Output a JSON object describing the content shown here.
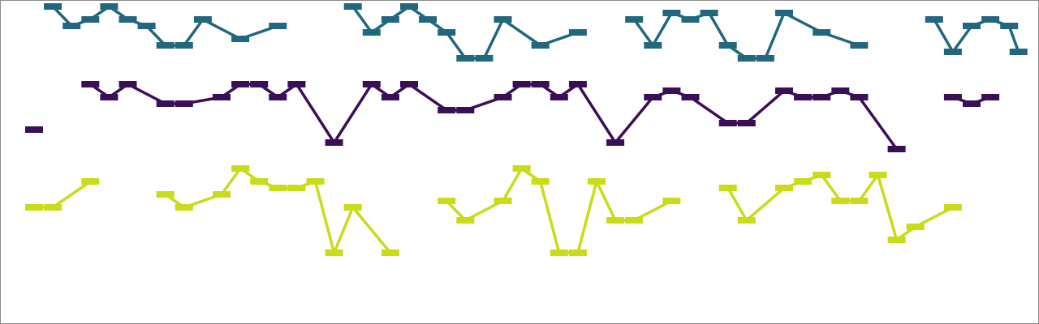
{
  "chart_data": {
    "type": "line",
    "title": "",
    "xlabel": "",
    "ylabel": "",
    "xlim": [
      1,
      53
    ],
    "ylim": [
      0,
      46
    ],
    "grid": false,
    "legend": "none",
    "colors": {
      "teal": "#21677e",
      "purple": "#3a0f57",
      "yellow": "#c9dc17"
    },
    "marker": "dash",
    "series": [
      {
        "color": "teal",
        "points": [
          [
            2,
            45
          ],
          [
            3,
            42
          ],
          [
            4,
            43
          ],
          [
            5,
            45
          ],
          [
            6,
            43
          ],
          [
            7,
            42
          ],
          [
            8,
            39
          ],
          [
            9,
            39
          ],
          [
            10,
            43
          ],
          [
            12,
            40
          ],
          [
            14,
            42
          ],
          [
            18,
            45
          ],
          [
            19,
            41
          ],
          [
            20,
            43
          ],
          [
            21,
            45
          ],
          [
            22,
            43
          ],
          [
            23,
            41
          ],
          [
            24,
            37
          ],
          [
            25,
            37
          ],
          [
            26,
            43
          ],
          [
            28,
            39
          ],
          [
            30,
            41
          ],
          [
            33,
            43
          ],
          [
            34,
            39
          ],
          [
            35,
            44
          ],
          [
            36,
            43
          ],
          [
            37,
            44
          ],
          [
            38,
            39
          ],
          [
            39,
            37
          ],
          [
            40,
            37
          ],
          [
            41,
            44
          ],
          [
            43,
            41
          ],
          [
            45,
            39
          ],
          [
            49,
            43
          ],
          [
            50,
            38
          ],
          [
            51,
            42
          ],
          [
            52,
            43
          ],
          [
            53,
            42
          ],
          [
            53.5,
            38
          ]
        ]
      },
      {
        "color": "purple",
        "points": [
          [
            4,
            33
          ],
          [
            5,
            31
          ],
          [
            6,
            33
          ],
          [
            8,
            30
          ],
          [
            9,
            30
          ],
          [
            11,
            31
          ],
          [
            12,
            33
          ],
          [
            13,
            33
          ],
          [
            14,
            31
          ],
          [
            15,
            33
          ],
          [
            17,
            24
          ],
          [
            19,
            33
          ],
          [
            20,
            31
          ],
          [
            21,
            33
          ],
          [
            23,
            29
          ],
          [
            24,
            29
          ],
          [
            26,
            31
          ],
          [
            27,
            33
          ],
          [
            28,
            33
          ],
          [
            29,
            31
          ],
          [
            30,
            33
          ],
          [
            32,
            24
          ],
          [
            34,
            31
          ],
          [
            35,
            32
          ],
          [
            36,
            31
          ],
          [
            38,
            27
          ],
          [
            39,
            27
          ],
          [
            41,
            32
          ],
          [
            42,
            31
          ],
          [
            43,
            31
          ],
          [
            44,
            32
          ],
          [
            45,
            31
          ],
          [
            47,
            23
          ],
          [
            50,
            31
          ],
          [
            51,
            30
          ],
          [
            52,
            31
          ]
        ]
      },
      {
        "color": "purple",
        "points": [
          [
            1,
            26
          ]
        ]
      },
      {
        "color": "yellow",
        "points": [
          [
            1,
            14
          ],
          [
            2,
            14
          ],
          [
            4,
            18
          ],
          [
            8,
            16
          ],
          [
            9,
            14
          ],
          [
            11,
            16
          ],
          [
            12,
            20
          ],
          [
            13,
            18
          ],
          [
            14,
            17
          ],
          [
            15,
            17
          ],
          [
            16,
            18
          ],
          [
            17,
            7
          ],
          [
            18,
            14
          ],
          [
            20,
            7
          ],
          [
            23,
            15
          ],
          [
            24,
            12
          ],
          [
            26,
            15
          ],
          [
            27,
            20
          ],
          [
            28,
            18
          ],
          [
            29,
            7
          ],
          [
            30,
            7
          ],
          [
            31,
            18
          ],
          [
            32,
            12
          ],
          [
            33,
            12
          ],
          [
            35,
            15
          ],
          [
            38,
            17
          ],
          [
            39,
            12
          ],
          [
            41,
            17
          ],
          [
            42,
            18
          ],
          [
            43,
            19
          ],
          [
            44,
            15
          ],
          [
            45,
            15
          ],
          [
            46,
            19
          ],
          [
            47,
            9
          ],
          [
            48,
            11
          ],
          [
            50,
            14
          ]
        ]
      }
    ]
  }
}
